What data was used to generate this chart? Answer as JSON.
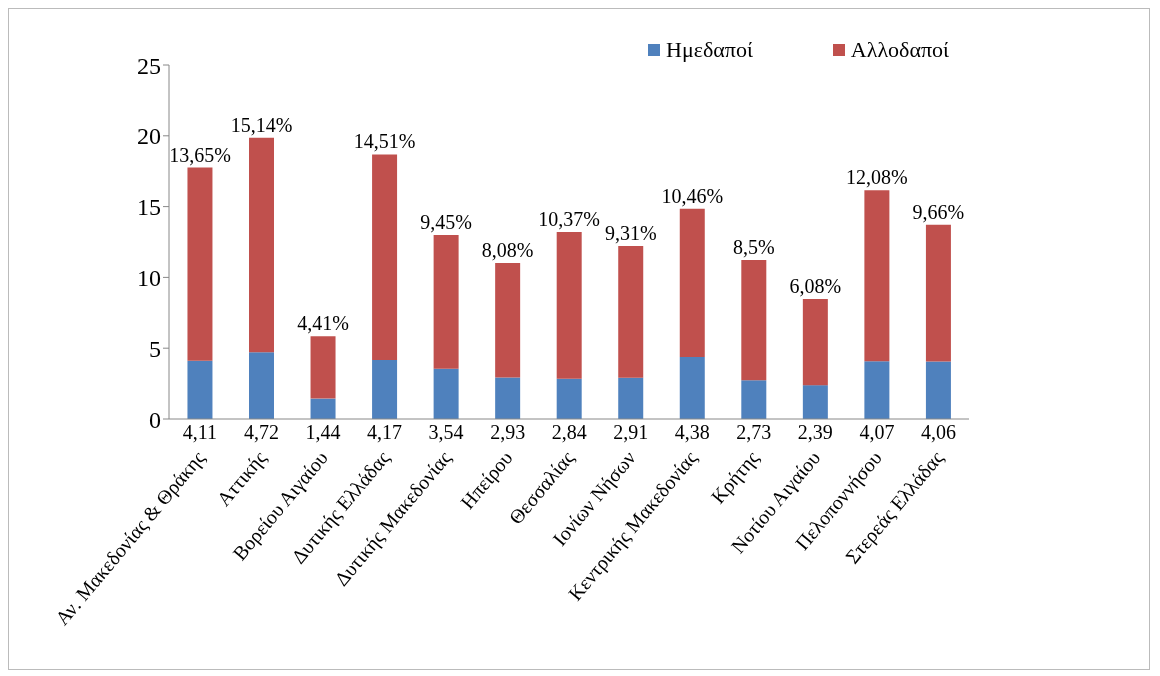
{
  "chart_data": {
    "type": "bar",
    "stacked": true,
    "categories": [
      "Αν. Μακεδονίας & Θράκης",
      "Αττικής",
      "Βορείου Αιγαίου",
      "Δυτικής Ελλάδας",
      "Δυτικής Μακεδονίας",
      "Ηπείρου",
      "Θεσσαλίας",
      "Ιονίων Νήσων",
      "Κεντρικής Μακεδονίας",
      "Κρήτης",
      "Νοτίου Αιγαίου",
      "Πελοποννήσου",
      "Στερεάς Ελλάδας"
    ],
    "series": [
      {
        "name": "Ημεδαποί",
        "color": "#4f81bd",
        "values": [
          4.11,
          4.72,
          1.44,
          4.17,
          3.54,
          2.93,
          2.84,
          2.91,
          4.38,
          2.73,
          2.39,
          4.07,
          4.06
        ],
        "value_labels": [
          "4,11",
          "4,72",
          "1,44",
          "4,17",
          "3,54",
          "2,93",
          "2,84",
          "2,91",
          "4,38",
          "2,73",
          "2,39",
          "4,07",
          "4,06"
        ]
      },
      {
        "name": "Αλλοδαποί",
        "color": "#c0504d",
        "values": [
          13.65,
          15.14,
          4.41,
          14.51,
          9.45,
          8.08,
          10.37,
          9.31,
          10.46,
          8.5,
          6.08,
          12.08,
          9.66
        ],
        "value_labels": [
          "13,65%",
          "15,14%",
          "4,41%",
          "14,51%",
          "9,45%",
          "8,08%",
          "10,37%",
          "9,31%",
          "10,46%",
          "8,5%",
          "6,08%",
          "12,08%",
          "9,66%"
        ]
      }
    ],
    "ylim": [
      0,
      25
    ],
    "yticks": [
      0,
      5,
      10,
      15,
      20,
      25
    ],
    "grid": false,
    "legend": "top right"
  }
}
